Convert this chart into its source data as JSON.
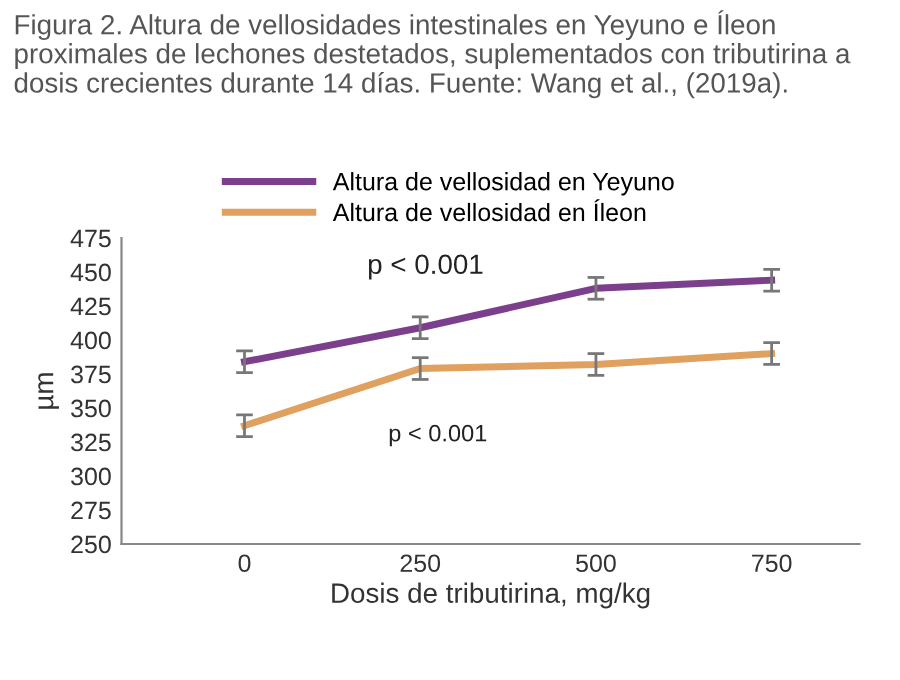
{
  "chart_data": {
    "type": "line",
    "title": "Figura 2. Altura de vellosidades intestinales en Yeyuno e Íleon proximales de lechones destetados, suplementados con tributirina a dosis crecientes durante 14 días. Fuente: Wang et al., (2019a).",
    "xlabel": "Dosis de tributirina, mg/kg",
    "ylabel": "µm",
    "categories": [
      "0",
      "250",
      "500",
      "750"
    ],
    "series": [
      {
        "name": "Altura de vellosidad en Yeyuno",
        "color": "#7b3f8c",
        "values": [
          384,
          409,
          438,
          444
        ],
        "errors": [
          8,
          8,
          8,
          8
        ]
      },
      {
        "name": "Altura de vellosidad en Íleon",
        "color": "#e0a060",
        "values": [
          337,
          379,
          382,
          390
        ],
        "errors": [
          8,
          8,
          8,
          8
        ]
      }
    ],
    "ylim": [
      250,
      475
    ],
    "yticks": [
      250,
      275,
      300,
      325,
      350,
      375,
      400,
      425,
      450,
      475
    ],
    "annotations": [
      "p < 0.001",
      "p < 0.001"
    ],
    "legend": "top",
    "grid": false,
    "marker": "none",
    "line_style": "solid"
  }
}
